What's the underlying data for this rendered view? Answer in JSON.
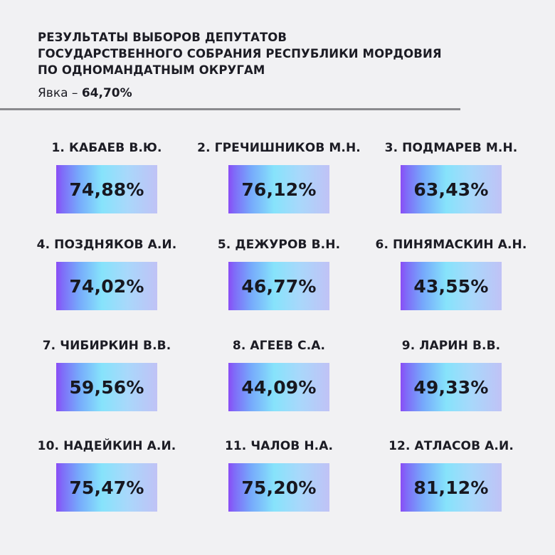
{
  "header": {
    "title_lines": [
      "РЕЗУЛЬТАТЫ ВЫБОРОВ ДЕПУТАТОВ",
      "ГОСУДАРСТВЕННОГО СОБРАНИЯ РЕСПУБЛИКИ МОРДОВИЯ",
      "ПО ОДНОМАНДАТНЫМ ОКРУГАМ"
    ],
    "turnout_label": "Явка – ",
    "turnout_value": "64,70%"
  },
  "districts": [
    {
      "name": "1. КАБАЕВ В.Ю.",
      "percent": "74,88%"
    },
    {
      "name": "2. ГРЕЧИШНИКОВ М.Н.",
      "percent": "76,12%"
    },
    {
      "name": "3. ПОДМАРЕВ М.Н.",
      "percent": "63,43%"
    },
    {
      "name": "4. ПОЗДНЯКОВ А.И.",
      "percent": "74,02%"
    },
    {
      "name": "5. ДЕЖУРОВ В.Н.",
      "percent": "46,77%"
    },
    {
      "name": "6. ПИНЯМАСКИН А.Н.",
      "percent": "43,55%"
    },
    {
      "name": "7. ЧИБИРКИН В.В.",
      "percent": "59,56%"
    },
    {
      "name": "8. АГЕЕВ С.А.",
      "percent": "44,09%"
    },
    {
      "name": "9. ЛАРИН В.В.",
      "percent": "49,33%"
    },
    {
      "name": "10. НАДЕЙКИН А.И.",
      "percent": "75,47%"
    },
    {
      "name": "11. ЧАЛОВ Н.А.",
      "percent": "75,20%"
    },
    {
      "name": "12. АТЛАСОВ А.И.",
      "percent": "81,12%"
    }
  ],
  "colors": {
    "background": "#f1f1f3",
    "text": "#1c1c24",
    "divider": "#8a8a8e",
    "gradient_start": "#8a4cf5",
    "gradient_mid": "#86e3fb",
    "gradient_end": "#c0c2f6"
  }
}
